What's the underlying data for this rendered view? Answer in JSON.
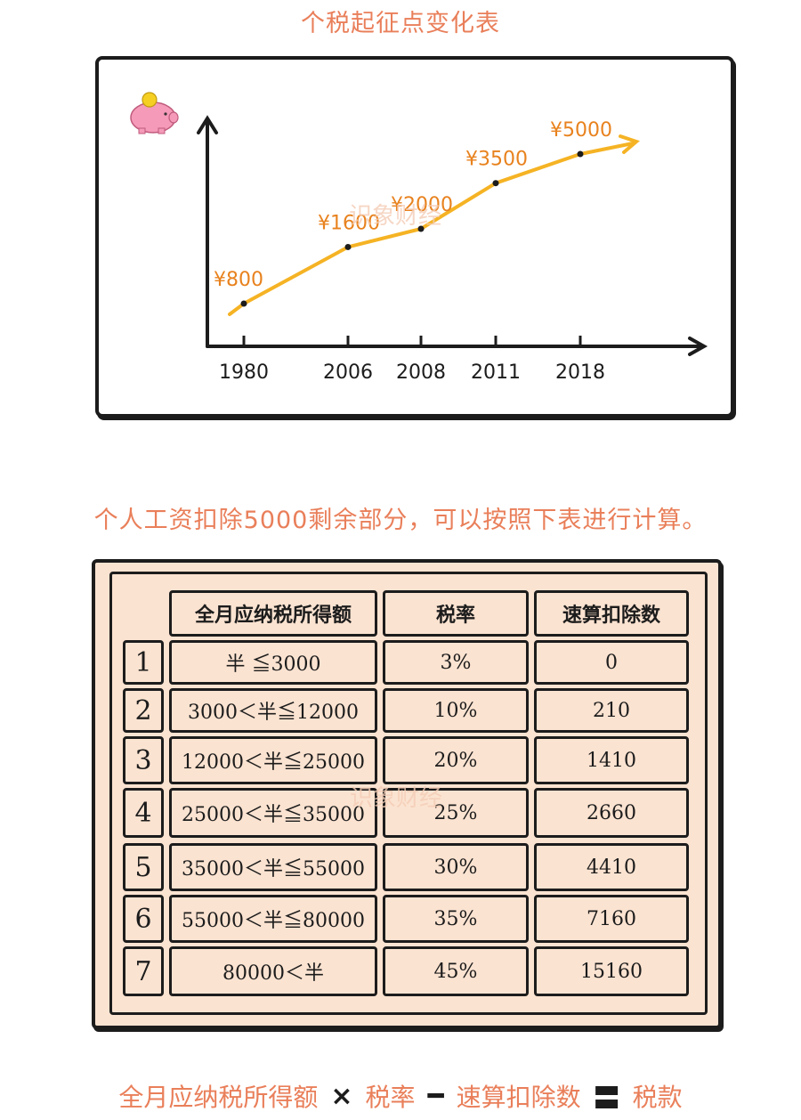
{
  "header": {
    "title": "个税起征点变化表"
  },
  "chart_data": {
    "type": "line",
    "title": "个税起征点变化表",
    "xlabel": "",
    "ylabel": "",
    "x": [
      "1980",
      "2006",
      "2008",
      "2011",
      "2018"
    ],
    "values": [
      800,
      1600,
      2000,
      3500,
      5000
    ],
    "value_labels": [
      "¥800",
      "¥1600",
      "¥2000",
      "¥3500",
      "¥5000"
    ],
    "line_color": "#f5b324",
    "label_color": "#e8821e",
    "axis_color": "#1c1c1c"
  },
  "watermark": {
    "text": "识象财经"
  },
  "intro": {
    "text": "个人工资扣除5000剩余部分，可以按照下表进行计算。"
  },
  "table": {
    "headers": [
      "全月应纳税所得额",
      "税率",
      "速算扣除数"
    ],
    "rows": [
      {
        "level": "1",
        "range": "半 ≦3000",
        "rate": "3%",
        "deduction": "0"
      },
      {
        "level": "2",
        "range": "3000＜半≦12000",
        "rate": "10%",
        "deduction": "210"
      },
      {
        "level": "3",
        "range": "12000＜半≦25000",
        "rate": "20%",
        "deduction": "1410"
      },
      {
        "level": "4",
        "range": "25000＜半≦35000",
        "rate": "25%",
        "deduction": "2660"
      },
      {
        "level": "5",
        "range": "35000＜半≦55000",
        "rate": "30%",
        "deduction": "4410"
      },
      {
        "level": "6",
        "range": "55000＜半≦80000",
        "rate": "35%",
        "deduction": "7160"
      },
      {
        "level": "7",
        "range": "80000＜半",
        "rate": "45%",
        "deduction": "15160"
      }
    ]
  },
  "formula": {
    "term1": "全月应纳税所得额",
    "op1": "×",
    "term2": "税率",
    "op2": "━",
    "term3": "速算扣除数",
    "op3": "〓",
    "term4": "税款"
  },
  "colors": {
    "accent": "#e97f5a",
    "board_bg": "#fbe3d1",
    "ink": "#1c1c1c",
    "piggy": "#f59ab8",
    "coin": "#f5d023"
  },
  "icons": [
    "piggy-bank-icon"
  ]
}
